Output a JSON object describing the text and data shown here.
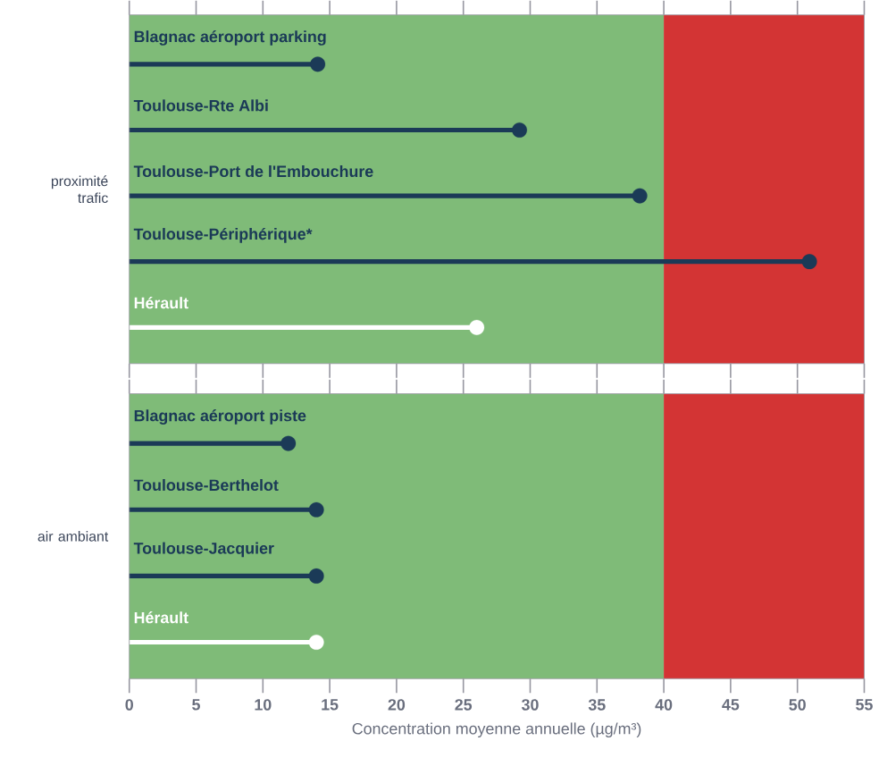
{
  "chart_data": [
    {
      "type": "lollipop",
      "orientation": "horizontal",
      "ylabel": "proximité trafic",
      "tick_labels": false,
      "categories": [
        "Blagnac aéroport parking",
        "Toulouse-Rte Albi",
        "Toulouse-Port de l'Embouchure",
        "Toulouse-Périphérique*",
        "Hérault"
      ],
      "values": [
        14.1,
        29.2,
        38.2,
        50.9,
        26.0
      ],
      "colors": [
        "#1b3a57",
        "#1b3a57",
        "#1b3a57",
        "#1b3a57",
        "#ffffff"
      ],
      "xlim": [
        0,
        55
      ],
      "xticks": [
        0,
        5,
        10,
        15,
        20,
        25,
        30,
        35,
        40,
        45,
        50,
        55
      ],
      "bands": [
        {
          "axis": "x",
          "from": 0,
          "to": 40,
          "color": "#7fbb78"
        },
        {
          "axis": "x",
          "from": 40,
          "to": 55,
          "color": "#d33434"
        }
      ]
    },
    {
      "type": "lollipop",
      "orientation": "horizontal",
      "ylabel": "air ambiant",
      "tick_labels": "x",
      "xlabel": "Concentration moyenne annuelle (µg/m³)",
      "categories": [
        "Blagnac aéroport piste",
        "Toulouse-Berthelot",
        "Toulouse-Jacquier",
        "Hérault"
      ],
      "values": [
        11.9,
        14.0,
        14.0,
        14.0
      ],
      "colors": [
        "#1b3a57",
        "#1b3a57",
        "#1b3a57",
        "#ffffff"
      ],
      "xlim": [
        0,
        55
      ],
      "xticks": [
        0,
        5,
        10,
        15,
        20,
        25,
        30,
        35,
        40,
        45,
        50,
        55
      ],
      "bands": [
        {
          "axis": "x",
          "from": 0,
          "to": 40,
          "color": "#7fbb78"
        },
        {
          "axis": "x",
          "from": 40,
          "to": 55,
          "color": "#d33434"
        }
      ]
    }
  ]
}
